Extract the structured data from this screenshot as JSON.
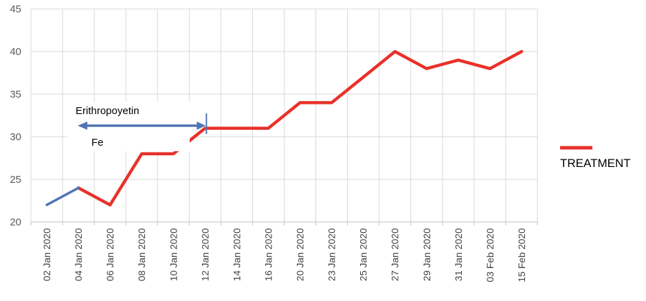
{
  "chart_data": {
    "type": "line",
    "categories": [
      "02 Jan 2020",
      "04 Jan 2020",
      "06 Jan 2020",
      "08 Jan 2020",
      "10 Jan 2020",
      "12 Jan 2020",
      "14 Jan 2020",
      "16 Jan 2020",
      "20 Jan 2020",
      "23 Jan 2020",
      "25 Jan 2020",
      "27 Jan 2020",
      "29 Jan 2020",
      "31 Jan 2020",
      "03 Feb 2020",
      "15 Feb 2020"
    ],
    "yticks": [
      "20",
      "25",
      "30",
      "35",
      "40",
      "45"
    ],
    "ylim": [
      20,
      45
    ],
    "grid": true,
    "legend_position": "right",
    "series": [
      {
        "name": "TREATMENT",
        "color": "#e8312a",
        "values": [
          null,
          24,
          22,
          28,
          28,
          31,
          31,
          31,
          34,
          34,
          37,
          40,
          38,
          39,
          38,
          40
        ]
      },
      {
        "color": "#4f75b5",
        "values": [
          22,
          24,
          null,
          null,
          null,
          null,
          null,
          null,
          null,
          null,
          null,
          null,
          null,
          null,
          null,
          null
        ]
      }
    ],
    "annotations": {
      "arrow_from_category": "04 Jan 2020",
      "arrow_to_category": "12 Jan 2020",
      "arrow_value": 31.3,
      "label_top": "Erithropoyetin",
      "label_bottom": "Fe",
      "arrow_color": "#4f75b5"
    }
  }
}
